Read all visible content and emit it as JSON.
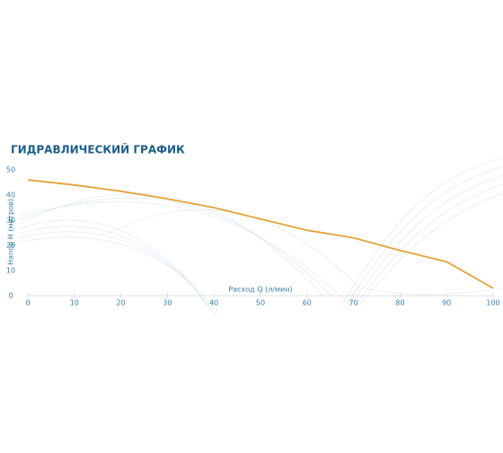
{
  "chart_data": {
    "type": "line",
    "title": "ГИДРАВЛИЧЕСКИЙ ГРАФИК",
    "x_label": "Расход Q (л/мин)",
    "y_label": "Напор Н (метров)",
    "x": [
      0,
      10,
      20,
      30,
      40,
      50,
      60,
      70,
      80,
      90,
      100
    ],
    "values": [
      46,
      44,
      41.5,
      38.5,
      35,
      30.5,
      26,
      23,
      18,
      13.5,
      3
    ],
    "color": "#e3a33a",
    "xlim": [
      0,
      100
    ],
    "ylim": [
      0,
      50
    ],
    "xticks": [
      0,
      10,
      20,
      30,
      40,
      50,
      60,
      70,
      80,
      90,
      100
    ],
    "yticks": [
      0,
      10,
      20,
      30,
      40,
      50
    ]
  }
}
